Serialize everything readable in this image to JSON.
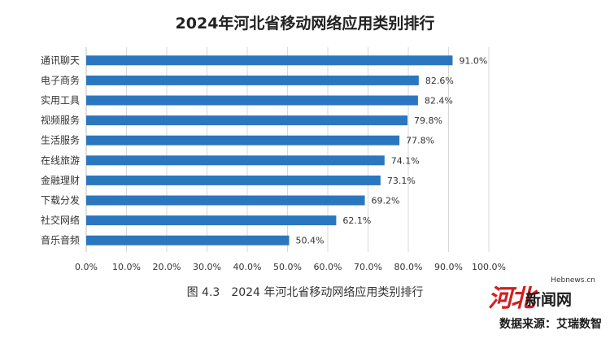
{
  "title": "2024年河北省移动网络应用类别排行",
  "caption": {
    "figure_no": "图 4.3",
    "text": "2024 年河北省移动网络应用类别排行"
  },
  "watermark": {
    "site": "Hebnews.cn",
    "mark": "河北",
    "name": "新闻网",
    "source": "数据来源：艾瑞数智"
  },
  "colors": {
    "bar": "#2a77bf",
    "grid": "#d9d9d9",
    "axis_text": "#333333"
  },
  "chart_data": {
    "type": "bar",
    "orientation": "horizontal",
    "categories": [
      "通讯聊天",
      "电子商务",
      "实用工具",
      "视频服务",
      "生活服务",
      "在线旅游",
      "金融理财",
      "下载分发",
      "社交网络",
      "音乐音频"
    ],
    "values": [
      91.0,
      82.6,
      82.4,
      79.8,
      77.8,
      74.1,
      73.1,
      69.2,
      62.1,
      50.4
    ],
    "value_labels": [
      "91.0%",
      "82.6%",
      "82.4%",
      "79.8%",
      "77.8%",
      "74.1%",
      "73.1%",
      "69.2%",
      "62.1%",
      "50.4%"
    ],
    "xlim": [
      0,
      100
    ],
    "xticks": [
      "0.0%",
      "10.0%",
      "20.0%",
      "30.0%",
      "40.0%",
      "50.0%",
      "60.0%",
      "70.0%",
      "80.0%",
      "90.0%",
      "100.0%"
    ],
    "grid": "vertical",
    "legend": "none"
  }
}
